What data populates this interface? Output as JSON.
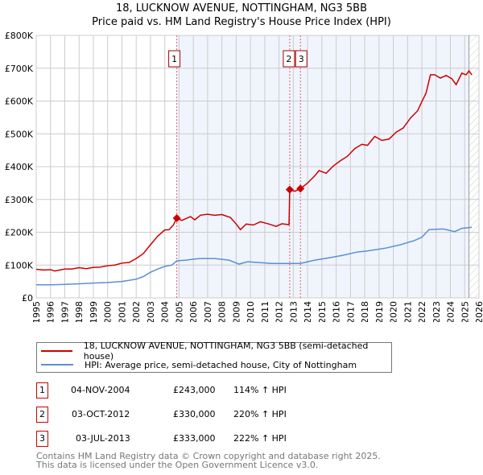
{
  "title_line1": "18, LUCKNOW AVENUE, NOTTINGHAM, NG3 5BB",
  "title_line2": "Price paid vs. HM Land Registry's House Price Index (HPI)",
  "legend": [
    {
      "label": "18, LUCKNOW AVENUE, NOTTINGHAM, NG3 5BB (semi-detached house)",
      "color": "#cc0000"
    },
    {
      "label": "HPI: Average price, semi-detached house, City of Nottingham",
      "color": "#5b8fd6"
    }
  ],
  "sales": [
    {
      "num": "1",
      "date": "04-NOV-2004",
      "price": "£243,000",
      "hpi": "114% ↑ HPI"
    },
    {
      "num": "2",
      "date": "03-OCT-2012",
      "price": "£330,000",
      "hpi": "220% ↑ HPI"
    },
    {
      "num": "3",
      "date": "03-JUL-2013",
      "price": "£333,000",
      "hpi": "222% ↑ HPI"
    }
  ],
  "footer_line1": "Contains HM Land Registry data © Crown copyright and database right 2025.",
  "footer_line2": "This data is licensed under the Open Government Licence v3.0.",
  "chart_data": {
    "type": "line",
    "xlim": [
      1995,
      2026
    ],
    "ylim": [
      0,
      800
    ],
    "x_ticks": [
      "1995",
      "1996",
      "1997",
      "1998",
      "1999",
      "2000",
      "2001",
      "2002",
      "2003",
      "2004",
      "2005",
      "2006",
      "2007",
      "2008",
      "2009",
      "2010",
      "2011",
      "2012",
      "2013",
      "2014",
      "2015",
      "2016",
      "2017",
      "2018",
      "2019",
      "2020",
      "2021",
      "2022",
      "2023",
      "2024",
      "2025",
      "2026"
    ],
    "y_ticks": [
      {
        "v": 0,
        "label": "£0"
      },
      {
        "v": 100,
        "label": "£100K"
      },
      {
        "v": 200,
        "label": "£200K"
      },
      {
        "v": 300,
        "label": "£300K"
      },
      {
        "v": 400,
        "label": "£400K"
      },
      {
        "v": 500,
        "label": "£500K"
      },
      {
        "v": 600,
        "label": "£600K"
      },
      {
        "v": 700,
        "label": "£700K"
      },
      {
        "v": 800,
        "label": "£800K"
      }
    ],
    "shaded_from": 2004.84,
    "hatched_from": 2025.3,
    "sale_points": [
      {
        "label": "1",
        "x": 2004.84,
        "y": 243
      },
      {
        "label": "2",
        "x": 2012.75,
        "y": 330
      },
      {
        "label": "3",
        "x": 2013.5,
        "y": 333
      }
    ],
    "series": [
      {
        "name": "price",
        "color": "#cc0000",
        "points": [
          [
            1995,
            87
          ],
          [
            1995.5,
            85
          ],
          [
            1996,
            86
          ],
          [
            1996.3,
            82
          ],
          [
            1997,
            88
          ],
          [
            1997.5,
            88
          ],
          [
            1998,
            92
          ],
          [
            1998.5,
            89
          ],
          [
            1999,
            93
          ],
          [
            1999.5,
            94
          ],
          [
            2000,
            98
          ],
          [
            2000.5,
            100
          ],
          [
            2001,
            106
          ],
          [
            2001.5,
            108
          ],
          [
            2002,
            120
          ],
          [
            2002.5,
            135
          ],
          [
            2003,
            162
          ],
          [
            2003.5,
            188
          ],
          [
            2004,
            207
          ],
          [
            2004.3,
            208
          ],
          [
            2004.6,
            222
          ],
          [
            2004.84,
            243
          ],
          [
            2005.2,
            236
          ],
          [
            2005.8,
            248
          ],
          [
            2006.1,
            238
          ],
          [
            2006.5,
            252
          ],
          [
            2007,
            255
          ],
          [
            2007.5,
            252
          ],
          [
            2008,
            254
          ],
          [
            2008.6,
            245
          ],
          [
            2009,
            225
          ],
          [
            2009.3,
            208
          ],
          [
            2009.7,
            225
          ],
          [
            2010.2,
            222
          ],
          [
            2010.7,
            232
          ],
          [
            2011.3,
            225
          ],
          [
            2011.8,
            218
          ],
          [
            2012.2,
            226
          ],
          [
            2012.7,
            223
          ],
          [
            2012.75,
            330
          ],
          [
            2013.1,
            325
          ],
          [
            2013.5,
            333
          ],
          [
            2014,
            350
          ],
          [
            2014.5,
            372
          ],
          [
            2014.8,
            388
          ],
          [
            2015.3,
            380
          ],
          [
            2015.8,
            402
          ],
          [
            2016.3,
            418
          ],
          [
            2016.8,
            432
          ],
          [
            2017.3,
            455
          ],
          [
            2017.8,
            468
          ],
          [
            2018.2,
            465
          ],
          [
            2018.7,
            492
          ],
          [
            2019.2,
            480
          ],
          [
            2019.7,
            484
          ],
          [
            2020.2,
            505
          ],
          [
            2020.7,
            518
          ],
          [
            2021.2,
            548
          ],
          [
            2021.7,
            570
          ],
          [
            2022,
            598
          ],
          [
            2022.3,
            625
          ],
          [
            2022.6,
            680
          ],
          [
            2022.9,
            680
          ],
          [
            2023.3,
            670
          ],
          [
            2023.7,
            678
          ],
          [
            2024.1,
            668
          ],
          [
            2024.4,
            650
          ],
          [
            2024.8,
            685
          ],
          [
            2025.1,
            680
          ],
          [
            2025.3,
            692
          ],
          [
            2025.5,
            680
          ]
        ]
      },
      {
        "name": "hpi",
        "color": "#5b8fd6",
        "points": [
          [
            1995,
            40
          ],
          [
            1996,
            40
          ],
          [
            1997,
            41
          ],
          [
            1998,
            43
          ],
          [
            1999,
            45
          ],
          [
            2000,
            47
          ],
          [
            2001,
            50
          ],
          [
            2002,
            57
          ],
          [
            2002.5,
            65
          ],
          [
            2003,
            78
          ],
          [
            2003.5,
            88
          ],
          [
            2004,
            96
          ],
          [
            2004.5,
            100
          ],
          [
            2004.84,
            113
          ],
          [
            2005.5,
            115
          ],
          [
            2006,
            118
          ],
          [
            2006.5,
            120
          ],
          [
            2007.5,
            120
          ],
          [
            2008.5,
            115
          ],
          [
            2009.2,
            103
          ],
          [
            2009.8,
            110
          ],
          [
            2010.5,
            108
          ],
          [
            2011.5,
            105
          ],
          [
            2012.5,
            105
          ],
          [
            2013.5,
            105
          ],
          [
            2014.5,
            115
          ],
          [
            2015.5,
            122
          ],
          [
            2016.5,
            130
          ],
          [
            2017.5,
            140
          ],
          [
            2018,
            142
          ],
          [
            2018.5,
            145
          ],
          [
            2019.5,
            152
          ],
          [
            2020.5,
            162
          ],
          [
            2021.5,
            175
          ],
          [
            2022,
            185
          ],
          [
            2022.5,
            208
          ],
          [
            2023.5,
            210
          ],
          [
            2024.3,
            202
          ],
          [
            2024.8,
            212
          ],
          [
            2025.5,
            215
          ]
        ]
      }
    ]
  }
}
